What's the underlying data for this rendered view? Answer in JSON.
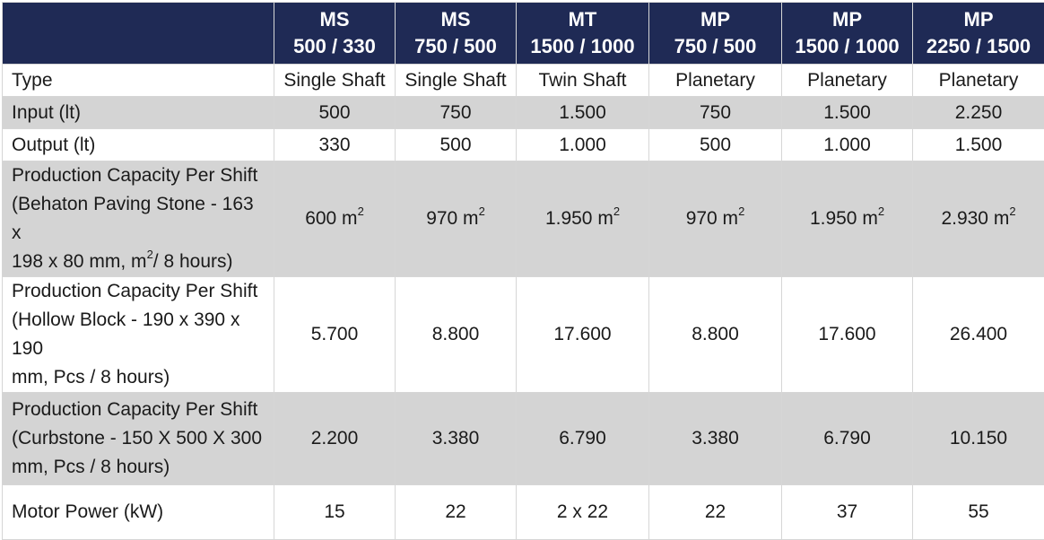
{
  "columns": [
    {
      "model": "MS",
      "size": "500 / 330"
    },
    {
      "model": "MS",
      "size": "750 / 500"
    },
    {
      "model": "MT",
      "size": "1500 / 1000"
    },
    {
      "model": "MP",
      "size": "750 / 500"
    },
    {
      "model": "MP",
      "size": "1500 / 1000"
    },
    {
      "model": "MP",
      "size": "2250 / 1500"
    }
  ],
  "rows": {
    "type": {
      "label": "Type",
      "values": [
        "Single Shaft",
        "Single Shaft",
        "Twin Shaft",
        "Planetary",
        "Planetary",
        "Planetary"
      ]
    },
    "input": {
      "label": "Input (lt)",
      "values": [
        "500",
        "750",
        "1.500",
        "750",
        "1.500",
        "2.250"
      ]
    },
    "output": {
      "label": "Output (lt)",
      "values": [
        "330",
        "500",
        "1.000",
        "500",
        "1.000",
        "1.500"
      ]
    },
    "paving": {
      "label_lines": [
        "Production Capacity Per Shift",
        "(Behaton Paving Stone  - 163 x",
        "198 x 80 mm, m",
        "/ 8 hours)"
      ],
      "sup": "2",
      "values": [
        "600 m",
        "970 m",
        "1.950 m",
        "970 m",
        "1.950 m",
        "2.930 m"
      ]
    },
    "hollow": {
      "label_lines": [
        "Production Capacity Per Shift",
        "(Hollow Block - 190 x 390 x 190",
        "mm, Pcs / 8 hours)"
      ],
      "values": [
        "5.700",
        "8.800",
        "17.600",
        "8.800",
        "17.600",
        "26.400"
      ]
    },
    "curb": {
      "label_lines": [
        "Production Capacity Per Shift",
        "(Curbstone - 150 X 500 X 300",
        "mm, Pcs / 8 hours)"
      ],
      "values": [
        "2.200",
        "3.380",
        "6.790",
        "3.380",
        "6.790",
        "10.150"
      ]
    },
    "motor": {
      "label": "Motor Power (kW)",
      "values": [
        "15",
        "22",
        "2 x 22",
        "22",
        "37",
        "55"
      ]
    }
  },
  "colors": {
    "header_bg": "#1f2a55",
    "header_text": "#ffffff",
    "band_grey": "#d4d4d4"
  }
}
